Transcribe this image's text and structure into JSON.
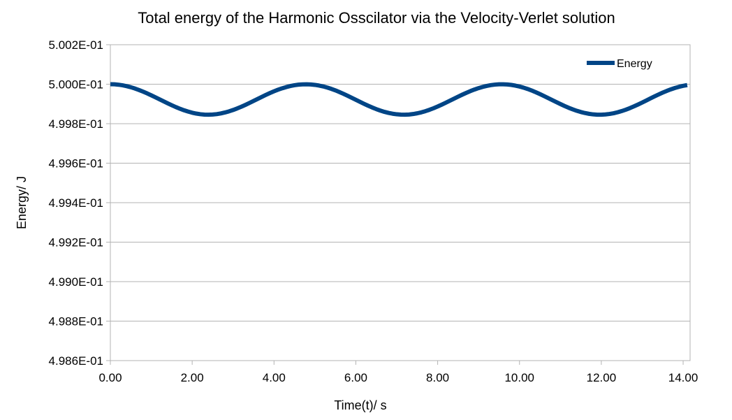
{
  "chart_data": {
    "type": "line",
    "title": "Total energy of the Harmonic Osscilator via the Velocity-Verlet solution",
    "xlabel": "Time(t)/ s",
    "ylabel": "Energy/ J",
    "xlim": [
      0,
      14.17
    ],
    "ylim": [
      0.4986,
      0.5002
    ],
    "x_ticks": [
      0,
      2,
      4,
      6,
      8,
      10,
      12,
      14
    ],
    "x_tick_labels": [
      "0.00",
      "2.00",
      "4.00",
      "6.00",
      "8.00",
      "10.00",
      "12.00",
      "14.00"
    ],
    "y_ticks": [
      0.4986,
      0.4988,
      0.499,
      0.4992,
      0.4994,
      0.4996,
      0.4998,
      0.5,
      0.5002
    ],
    "y_tick_labels": [
      "4.986E-01",
      "4.988E-01",
      "4.990E-01",
      "4.992E-01",
      "4.994E-01",
      "4.996E-01",
      "4.998E-01",
      "5.000E-01",
      "5.002E-01"
    ],
    "grid": "horizontal",
    "legend_position": "top-right",
    "series": [
      {
        "name": "Energy",
        "color": "#004586",
        "x": [
          0.0,
          0.1,
          0.2,
          0.3,
          0.4,
          0.5,
          0.6,
          0.7,
          0.8,
          0.9,
          1.0,
          1.1,
          1.2,
          1.3,
          1.4,
          1.5,
          1.6,
          1.7,
          1.8,
          1.9,
          2.0,
          2.1,
          2.2,
          2.3,
          2.4,
          2.5,
          2.6,
          2.7,
          2.8,
          2.9,
          3.0,
          3.1,
          3.2,
          3.3,
          3.4,
          3.5,
          3.6,
          3.7,
          3.8,
          3.9,
          4.0,
          4.1,
          4.2,
          4.3,
          4.4,
          4.5,
          4.6,
          4.7,
          4.8,
          4.9,
          5.0,
          5.1,
          5.2,
          5.3,
          5.4,
          5.5,
          5.6,
          5.7,
          5.8,
          5.9,
          6.0,
          6.1,
          6.2,
          6.3,
          6.4,
          6.5,
          6.6,
          6.7,
          6.8,
          6.9,
          7.0,
          7.1,
          7.2,
          7.3,
          7.4,
          7.5,
          7.6,
          7.7,
          7.8,
          7.9,
          8.0,
          8.1,
          8.2,
          8.3,
          8.4,
          8.5,
          8.6,
          8.7,
          8.8,
          8.9,
          9.0,
          9.1,
          9.2,
          9.3,
          9.4,
          9.5,
          9.6,
          9.7,
          9.8,
          9.9,
          10.0,
          10.1,
          10.2,
          10.3,
          10.4,
          10.5,
          10.6,
          10.7,
          10.8,
          10.9,
          11.0,
          11.1,
          11.2,
          11.3,
          11.4,
          11.5,
          11.6,
          11.7,
          11.8,
          11.9,
          12.0,
          12.1,
          12.2,
          12.3,
          12.4,
          12.5,
          12.6,
          12.7,
          12.8,
          12.9,
          13.0,
          13.1,
          13.2,
          13.3,
          13.4,
          13.5,
          13.6,
          13.7,
          13.8,
          13.9,
          14.0,
          14.1
        ],
        "values": [
          0.5,
          0.4999994,
          0.4999975,
          0.4999944,
          0.4999901,
          0.4999847,
          0.4999782,
          0.4999707,
          0.4999624,
          0.4999534,
          0.4999438,
          0.4999338,
          0.4999236,
          0.4999134,
          0.4999033,
          0.4998936,
          0.4998843,
          0.4998758,
          0.4998681,
          0.4998614,
          0.4998557,
          0.4998513,
          0.499848,
          0.4998461,
          0.4998456,
          0.4998464,
          0.4998485,
          0.499852,
          0.4998567,
          0.4998625,
          0.4998694,
          0.4998773,
          0.4998859,
          0.4998953,
          0.4999051,
          0.4999153,
          0.4999256,
          0.4999358,
          0.4999457,
          0.4999552,
          0.4999641,
          0.4999722,
          0.4999794,
          0.4999856,
          0.4999908,
          0.4999949,
          0.4999977,
          0.4999993,
          0.4999997,
          0.4999988,
          0.4999966,
          0.4999933,
          0.4999888,
          0.4999832,
          0.4999765,
          0.4999689,
          0.4999603,
          0.4999511,
          0.4999413,
          0.4999312,
          0.499921,
          0.4999108,
          0.4999008,
          0.4998911,
          0.4998821,
          0.4998738,
          0.4998664,
          0.4998599,
          0.4998546,
          0.4998505,
          0.4998476,
          0.4998459,
          0.4998456,
          0.4998466,
          0.499849,
          0.4998526,
          0.4998574,
          0.4998634,
          0.4998704,
          0.4998783,
          0.4998871,
          0.4998965,
          0.4999064,
          0.4999165,
          0.4999268,
          0.499937,
          0.4999469,
          0.4999563,
          0.4999651,
          0.4999731,
          0.4999802,
          0.4999863,
          0.4999913,
          0.4999953,
          0.499998,
          0.4999995,
          0.4999997,
          0.4999987,
          0.4999964,
          0.4999929,
          0.4999883,
          0.4999826,
          0.4999758,
          0.499968,
          0.4999594,
          0.49995,
          0.4999401,
          0.49993,
          0.4999197,
          0.4999095,
          0.4998995,
          0.4998899,
          0.4998809,
          0.4998727,
          0.4998654,
          0.4998591,
          0.499854,
          0.49985,
          0.4998472,
          0.4998457,
          0.4998456,
          0.4998468,
          0.4998493,
          0.499853,
          0.4998579,
          0.499864,
          0.4998711,
          0.4998791,
          0.499888,
          0.4998975,
          0.4999074,
          0.4999176,
          0.4999279,
          0.4999381,
          0.499948,
          0.4999574,
          0.4999661,
          0.499974,
          0.499981,
          0.4999869,
          0.4999918,
          0.4999956
        ]
      }
    ]
  }
}
